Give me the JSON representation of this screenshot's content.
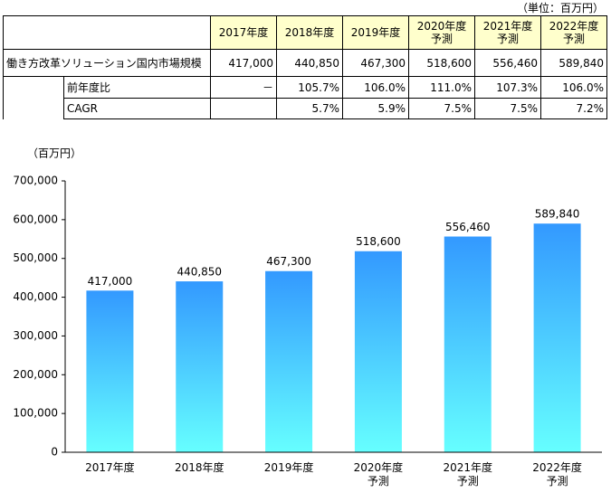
{
  "table": {
    "unit": "（単位：百万円）",
    "row_label": "働き方改革ソリューション国内市場規模",
    "rows": [
      {
        "label": "前年度比",
        "cells": [
          "－",
          "105.7%",
          "106.0%",
          "111.0%",
          "107.3%",
          "106.0%"
        ]
      },
      {
        "label": "CAGR",
        "cells": [
          "",
          "5.7%",
          "5.9%",
          "7.5%",
          "7.5%",
          "7.2%"
        ]
      }
    ]
  },
  "chart_data": {
    "type": "bar",
    "y_label": "（百万円）",
    "categories": [
      "2017年度",
      "2018年度",
      "2019年度",
      "2020年度\n予測",
      "2021年度\n予測",
      "2022年度\n予測"
    ],
    "values": [
      417000,
      440850,
      467300,
      518600,
      556460,
      589840
    ],
    "value_labels": [
      "417,000",
      "440,850",
      "467,300",
      "518,600",
      "556,460",
      "589,840"
    ],
    "color": "#3399ff",
    "ylim": [
      0,
      700000
    ],
    "yticks": [
      0,
      {
        "value": 100000,
        "label": "100,000"
      },
      {
        "value": 200000,
        "label": "200,000"
      },
      {
        "value": 300000,
        "label": "300,000"
      },
      {
        "value": 400000,
        "label": "400,000"
      },
      {
        "value": 500000,
        "label": "500,000"
      },
      {
        "value": 600000,
        "label": "600,000"
      },
      {
        "value": 700000,
        "label": "700,000"
      }
    ]
  }
}
